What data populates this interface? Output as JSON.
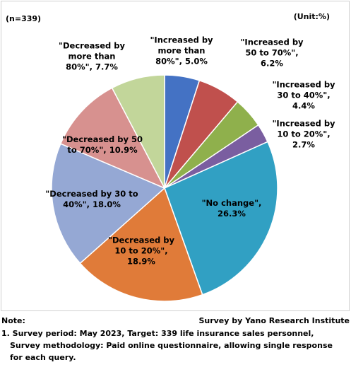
{
  "chart_data": {
    "type": "pie",
    "sample_note": "(n=339)",
    "unit_note": "(Unit:%)",
    "categories": [
      "\"Increased by more than 80%\",",
      "\"Increased by 50 to 70%\",",
      "\"Increased by 30 to 40%\",",
      "\"Increased by 10 to 20%\",",
      "\"No change\",",
      "\"Decreased by 10 to 20%\",",
      "\"Decreased by 30 to 40%\",",
      "\"Decreased by 50 to 70%\",",
      "\"Decreased by more than 80%\","
    ],
    "values": [
      5.0,
      6.2,
      4.4,
      2.7,
      26.3,
      18.9,
      18.0,
      10.9,
      7.7
    ],
    "value_labels": [
      "5.0%",
      "6.2%",
      "4.4%",
      "2.7%",
      "26.3%",
      "18.9%",
      "18.0%",
      "10.9%",
      "7.7%"
    ],
    "colors": [
      "#4472c4",
      "#c0504d",
      "#8fb04c",
      "#7a5ea0",
      "#31a0c3",
      "#e07b39",
      "#95a8d4",
      "#d7918f",
      "#c2d69a"
    ]
  },
  "footer": {
    "note_title": "Note:",
    "source": "Survey by Yano Research Institute",
    "notes": [
      "1. Survey period: May 2023, Target: 339 life insurance sales personnel,",
      "Survey methodology: Paid online questionnaire, allowing single response",
      "for each query."
    ]
  }
}
